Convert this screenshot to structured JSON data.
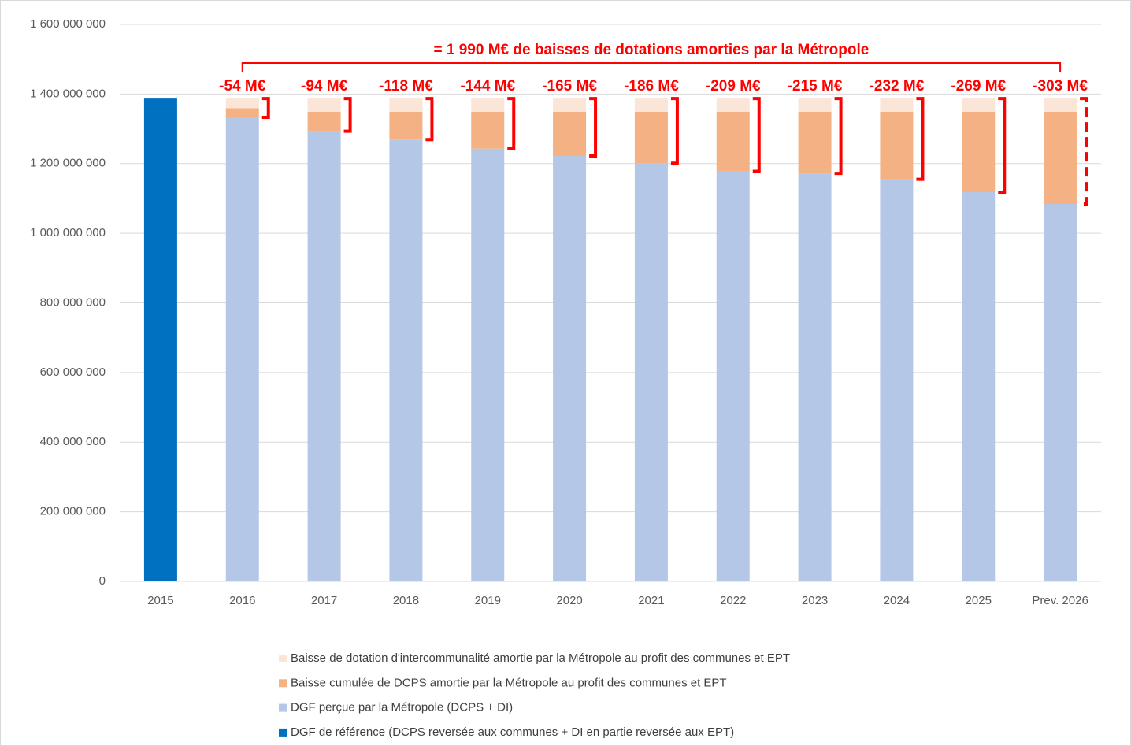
{
  "chart_data": {
    "type": "stacked_bar",
    "categories": [
      "2015",
      "2016",
      "2017",
      "2018",
      "2019",
      "2020",
      "2021",
      "2022",
      "2023",
      "2024",
      "2025",
      "Prev. 2026"
    ],
    "series": [
      {
        "name": "DGF de référence (DCPS reversée aux communes + DI en partie reversée aux EPT)",
        "color": "#0070c0",
        "values": [
          1387000000,
          null,
          null,
          null,
          null,
          null,
          null,
          null,
          null,
          null,
          null,
          null
        ]
      },
      {
        "name": "DGF perçue par la Métropole (DCPS + DI)",
        "color": "#b4c7e7",
        "values": [
          null,
          1333000000,
          1293000000,
          1269000000,
          1243000000,
          1222000000,
          1201000000,
          1178000000,
          1172000000,
          1155000000,
          1118000000,
          1084000000
        ]
      },
      {
        "name": "Baisse cumulée de DCPS amortie par la Métropole au profit des communes et EPT",
        "color": "#f4b183",
        "values": [
          null,
          26000000,
          56000000,
          80000000,
          106000000,
          127000000,
          148000000,
          171000000,
          177000000,
          194000000,
          231000000,
          265000000
        ]
      },
      {
        "name": "Baisse de dotation d'intercommunalité amortie par la Métropole au profit des communes et EPT",
        "color": "#fbe5d6",
        "values": [
          null,
          28000000,
          38000000,
          38000000,
          38000000,
          38000000,
          38000000,
          38000000,
          38000000,
          38000000,
          38000000,
          38000000
        ]
      }
    ],
    "annotations": [
      "-54 M€",
      "-94 M€",
      "-118 M€",
      "-144 M€",
      "-165 M€",
      "-186 M€",
      "-209 M€",
      "-215 M€",
      "-232 M€",
      "-269 M€",
      "-303 M€"
    ],
    "total_annotation": "= 1 990 M€ de baisses de dotations amorties par la Métropole",
    "ylim": [
      0,
      1600000000
    ],
    "yticks": [
      0,
      {
        "value": 200000000,
        "label": "200 000 000"
      },
      {
        "value": 400000000,
        "label": "400 000 000"
      },
      {
        "value": 600000000,
        "label": "600 000 000"
      },
      {
        "value": 800000000,
        "label": "800 000 000"
      },
      {
        "value": 1000000000,
        "label": "1 000 000 000"
      },
      {
        "value": 1200000000,
        "label": "1 200 000 000"
      },
      {
        "value": 1400000000,
        "label": "1 400 000 000"
      },
      {
        "value": 1600000000,
        "label": "1 600 000 000"
      }
    ],
    "grid": true,
    "legend": "bottom",
    "annotation_color": "#ff0000"
  }
}
